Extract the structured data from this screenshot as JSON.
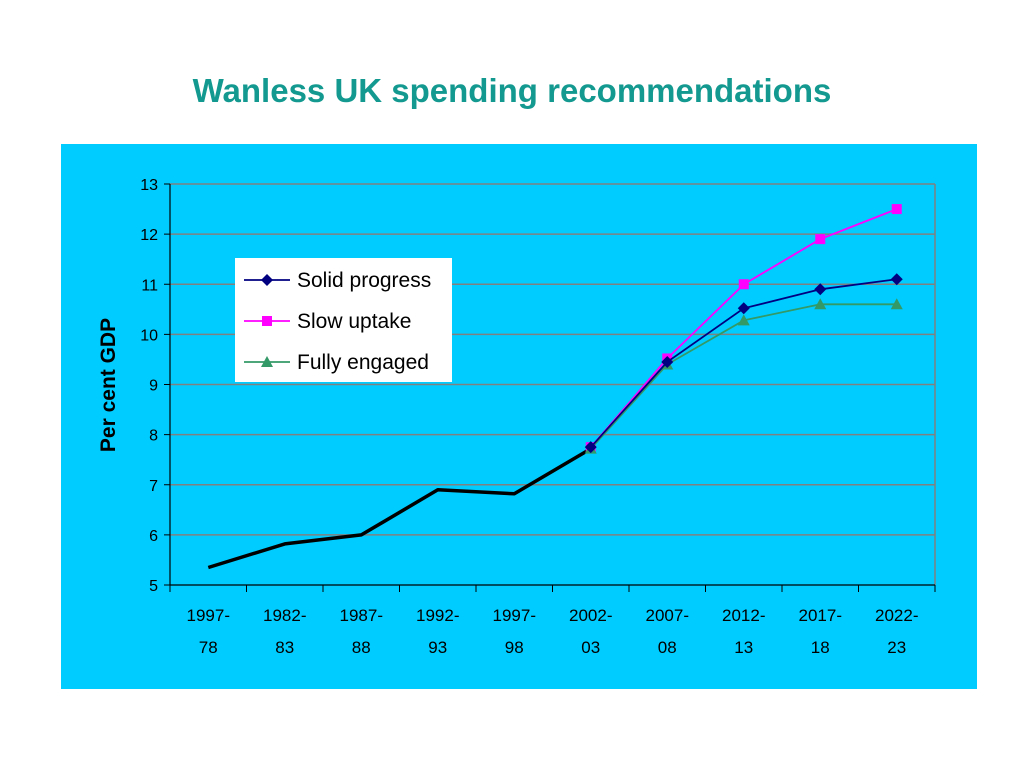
{
  "slide": {
    "title": "Wanless UK spending recommendations"
  },
  "colors": {
    "title": "#13998f",
    "panel": "#00ccff",
    "historical": "#000000",
    "solid_progress": "#000080",
    "slow_uptake": "#ff00ff",
    "fully_engaged": "#339966"
  },
  "chart_data": {
    "type": "line",
    "title": "",
    "xlabel": "",
    "ylabel": "Per cent GDP",
    "ylim": [
      5,
      13
    ],
    "yticks": [
      5,
      6,
      7,
      8,
      9,
      10,
      11,
      12,
      13
    ],
    "grid": true,
    "legend_position": "upper-left",
    "categories": [
      [
        "1997-",
        "78"
      ],
      [
        "1982-",
        "83"
      ],
      [
        "1987-",
        "88"
      ],
      [
        "1992-",
        "93"
      ],
      [
        "1997-",
        "98"
      ],
      [
        "2002-",
        "03"
      ],
      [
        "2007-",
        "08"
      ],
      [
        "2012-",
        "13"
      ],
      [
        "2017-",
        "18"
      ],
      [
        "2022-",
        "23"
      ]
    ],
    "historical": {
      "values": [
        5.35,
        5.82,
        6.0,
        6.9,
        6.82,
        7.72,
        null,
        null,
        null,
        null
      ]
    },
    "series": [
      {
        "name": "Solid progress",
        "marker": "diamond",
        "values": [
          null,
          null,
          null,
          null,
          null,
          7.75,
          9.45,
          10.52,
          10.9,
          11.1
        ]
      },
      {
        "name": "Slow uptake",
        "marker": "square",
        "values": [
          null,
          null,
          null,
          null,
          null,
          7.75,
          9.52,
          11.0,
          11.9,
          12.5
        ]
      },
      {
        "name": "Fully engaged",
        "marker": "triangle",
        "values": [
          null,
          null,
          null,
          null,
          null,
          7.72,
          9.4,
          10.28,
          10.6,
          10.6
        ]
      }
    ]
  }
}
